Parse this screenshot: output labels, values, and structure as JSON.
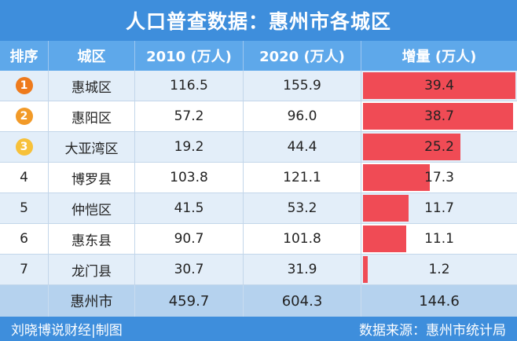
{
  "title": "人口普查数据：惠州市各城区",
  "colors": {
    "title_bg": "#3e8edc",
    "header_bg": "#5ea8ea",
    "row_alt": "#e3eef9",
    "total_bg": "#b5d2ee",
    "bar": "#f04b55",
    "rank1": "#ee7a1c",
    "rank2": "#f29a28",
    "rank3": "#f7c13a"
  },
  "chart_data": {
    "type": "table",
    "title": "人口普查数据：惠州市各城区",
    "columns": [
      "排序",
      "城区",
      "2010 (万人)",
      "2020 (万人)",
      "增量 (万人)"
    ],
    "rows": [
      {
        "rank": "1",
        "district": "惠城区",
        "pop2010": "116.5",
        "pop2020": "155.9",
        "increase": "39.4",
        "increase_value": 39.4
      },
      {
        "rank": "2",
        "district": "惠阳区",
        "pop2010": "57.2",
        "pop2020": "96.0",
        "increase": "38.7",
        "increase_value": 38.7
      },
      {
        "rank": "3",
        "district": "大亚湾区",
        "pop2010": "19.2",
        "pop2020": "44.4",
        "increase": "25.2",
        "increase_value": 25.2
      },
      {
        "rank": "4",
        "district": "博罗县",
        "pop2010": "103.8",
        "pop2020": "121.1",
        "increase": "17.3",
        "increase_value": 17.3
      },
      {
        "rank": "5",
        "district": "仲恺区",
        "pop2010": "41.5",
        "pop2020": "53.2",
        "increase": "11.7",
        "increase_value": 11.7
      },
      {
        "rank": "6",
        "district": "惠东县",
        "pop2010": "90.7",
        "pop2020": "101.8",
        "increase": "11.1",
        "increase_value": 11.1
      },
      {
        "rank": "7",
        "district": "龙门县",
        "pop2010": "30.7",
        "pop2020": "31.9",
        "increase": "1.2",
        "increase_value": 1.2
      }
    ],
    "total": {
      "label": "惠州市",
      "pop2010": "459.7",
      "pop2020": "604.3",
      "increase": "144.6"
    },
    "bar_max": 39.4
  },
  "footer": {
    "left": "刘晓博说财经|制图",
    "right": "数据来源：惠州市统计局"
  }
}
